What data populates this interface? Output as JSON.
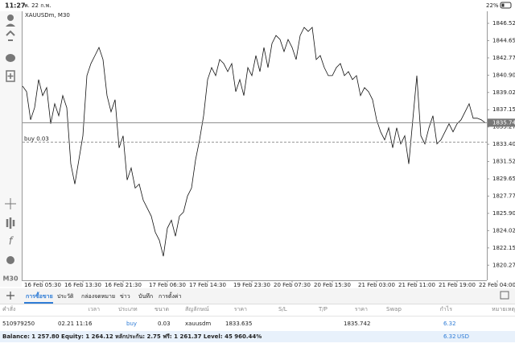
{
  "status_bar": {
    "time": "11:27",
    "date": "พ. 22 ก.พ.",
    "battery": "22%"
  },
  "chart_data": {
    "type": "line",
    "symbol": "XAUUSDm, M30",
    "timeframe": "M30",
    "order_line_label": "buy 0.03",
    "categories": [
      null,
      null,
      null,
      null,
      null,
      "16 Feb 05:30",
      null,
      null,
      null,
      null,
      null,
      null,
      null,
      null,
      null,
      "16 Feb 13:30",
      null,
      null,
      null,
      null,
      null,
      null,
      null,
      null,
      null,
      "16 Feb 21:30",
      null,
      null,
      null,
      null,
      null,
      null,
      null,
      null,
      null,
      null,
      "17 Feb 06:30",
      null,
      null,
      null,
      null,
      null,
      null,
      null,
      null,
      null,
      "17 Feb 14:30",
      null,
      null,
      null,
      null,
      null,
      null,
      null,
      null,
      null,
      null,
      "19 Feb 23:30",
      null,
      null,
      null,
      null,
      null,
      null,
      null,
      null,
      null,
      "20 Feb 07:30",
      null,
      null,
      null,
      null,
      null,
      null,
      null,
      null,
      null,
      "20 Feb 15:30",
      null,
      null,
      null,
      null,
      null,
      null,
      null,
      null,
      null,
      null,
      "21 Feb 03:00",
      null,
      null,
      null,
      null,
      null,
      null,
      null,
      null,
      null,
      "21 Feb 11:00",
      null,
      null,
      null,
      null,
      null,
      null,
      null,
      null,
      null,
      "21 Feb 19:00",
      null,
      null,
      null,
      null,
      null,
      null,
      null,
      null,
      null,
      "22 Feb 04:00"
    ],
    "series": [
      {
        "color": "#111111",
        "values": [
          1839.72,
          1839.11,
          1836.06,
          1837.37,
          1840.42,
          1838.68,
          1839.55,
          1835.62,
          1837.8,
          1836.5,
          1838.68,
          1837.37,
          1831.26,
          1829.08,
          1831.7,
          1834.32,
          1840.85,
          1842.16,
          1843.03,
          1843.91,
          1842.6,
          1838.68,
          1836.93,
          1838.24,
          1833.01,
          1834.32,
          1829.52,
          1830.83,
          1828.65,
          1829.08,
          1827.34,
          1826.47,
          1825.6,
          1823.85,
          1822.98,
          1821.24,
          1824.29,
          1825.16,
          1823.42,
          1825.6,
          1826.03,
          1827.78,
          1828.65,
          1831.7,
          1833.88,
          1836.5,
          1840.42,
          1841.73,
          1840.85,
          1842.6,
          1842.16,
          1841.29,
          1842.16,
          1839.11,
          1840.42,
          1838.68,
          1841.73,
          1840.85,
          1843.03,
          1841.29,
          1843.91,
          1841.73,
          1844.34,
          1845.21,
          1844.78,
          1843.47,
          1844.78,
          1843.91,
          1842.6,
          1845.21,
          1846.09,
          1845.65,
          1846.09,
          1842.6,
          1843.03,
          1841.73,
          1840.85,
          1840.85,
          1841.73,
          1842.16,
          1840.85,
          1841.29,
          1840.42,
          1840.85,
          1838.68,
          1839.55,
          1839.11,
          1838.24,
          1836.06,
          1834.75,
          1833.88,
          1835.19,
          1833.01,
          1835.19,
          1833.44,
          1834.32,
          1831.26,
          1836.06,
          1840.85,
          1834.32,
          1833.44,
          1835.19,
          1836.5,
          1833.44,
          1833.88,
          1834.75,
          1835.62,
          1834.75,
          1835.62,
          1836.06,
          1836.93,
          1837.8,
          1836.23,
          1836.23,
          1836.06,
          1835.74,
          null,
          null,
          null
        ]
      }
    ],
    "ylim": [
      1818.9,
      1847.75
    ],
    "yticks": [
      1846.525,
      {
        "value": 1844.65,
        "label": "1844.650"
      },
      1842.775,
      {
        "value": 1840.9,
        "label": "1840.900"
      },
      1839.025,
      {
        "value": 1837.15,
        "label": "1837.150"
      },
      1835.275,
      {
        "value": 1833.4,
        "label": "1833.400"
      },
      1831.525,
      {
        "value": 1829.65,
        "label": "1829.650"
      },
      1827.775,
      {
        "value": 1825.9,
        "label": "1825.900"
      },
      1824.025,
      {
        "value": 1822.15,
        "label": "1822.150"
      },
      1820.275
    ]
  },
  "tabs": [
    "การซื้อขาย",
    "ประวัติ",
    "กล่องจดหมาย",
    "ข่าว",
    "บันทึก",
    "การตั้งค่า"
  ],
  "positions": {
    "columns": [
      "คำสั่ง",
      "เวลา",
      "ประเภท",
      "ขนาด",
      "สัญลักษณ์",
      "ราคา",
      "S/L",
      "T/P",
      "ราคา",
      "Swap",
      "กำไร",
      "หมายเหตุ"
    ],
    "rows": [
      {
        "order": "510979250",
        "time": "02.21 11:16",
        "type": "buy",
        "size": 0.03,
        "symbol": "xauusdm",
        "open_price": 1833.635,
        "current_price": 1835.742,
        "profit": 6.32
      }
    ]
  },
  "footer": {
    "summary": "Balance: 1 257.80 Equity: 1 264.12 หลักประกัน: 2.75 ฟรี: 1 261.37 Level: 45 960.44%",
    "profit": 6.32,
    "currency": "USD"
  }
}
